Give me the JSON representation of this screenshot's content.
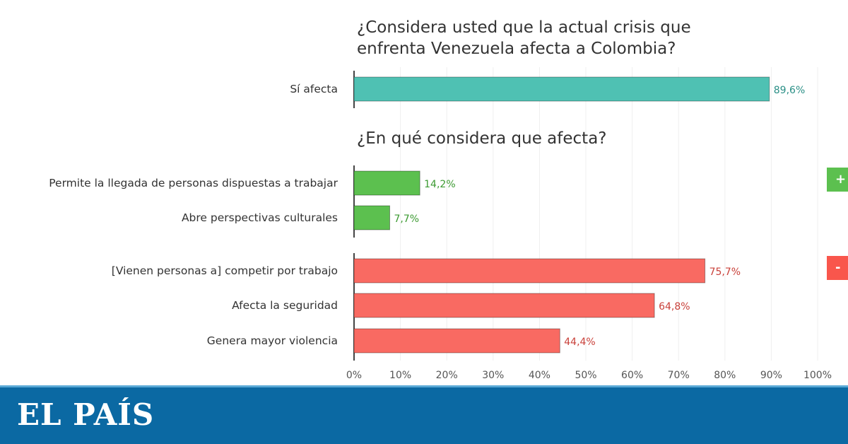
{
  "chart_data": [
    {
      "type": "bar",
      "orientation": "horizontal",
      "title": "¿Considera usted que la actual crisis que enfrenta Venezuela afecta a Colombia?",
      "categories": [
        "Sí afecta"
      ],
      "values": [
        89.6
      ],
      "labels": [
        "89,6%"
      ],
      "color": "#4fc1b3",
      "label_color": "#2a8f86"
    },
    {
      "type": "bar",
      "orientation": "horizontal",
      "title": "¿En qué considera que afecta?",
      "groups": [
        {
          "badge": "+",
          "color": "#5cc04f",
          "label_color": "#3c9a32",
          "categories": [
            "Permite la llegada de personas dispuestas a trabajar",
            "Abre perspectivas culturales"
          ],
          "values": [
            14.2,
            7.7
          ],
          "labels": [
            "14,2%",
            "7,7%"
          ]
        },
        {
          "badge": "-",
          "color": "#f96a62",
          "label_color": "#c9413a",
          "categories": [
            "[Vienen personas a] competir por trabajo",
            "Afecta la seguridad",
            "Genera mayor violencia"
          ],
          "values": [
            75.7,
            64.8,
            44.4
          ],
          "labels": [
            "75,7%",
            "64,8%",
            "44,4%"
          ]
        }
      ],
      "xlim": [
        0,
        100
      ],
      "xticks": [
        "0%",
        "10%",
        "20%",
        "30%",
        "40%",
        "50%",
        "60%",
        "70%",
        "80%",
        "90%",
        "100%"
      ],
      "grid": true
    }
  ],
  "footer": {
    "logo": "EL PAÍS",
    "color": "#0b69a3"
  }
}
